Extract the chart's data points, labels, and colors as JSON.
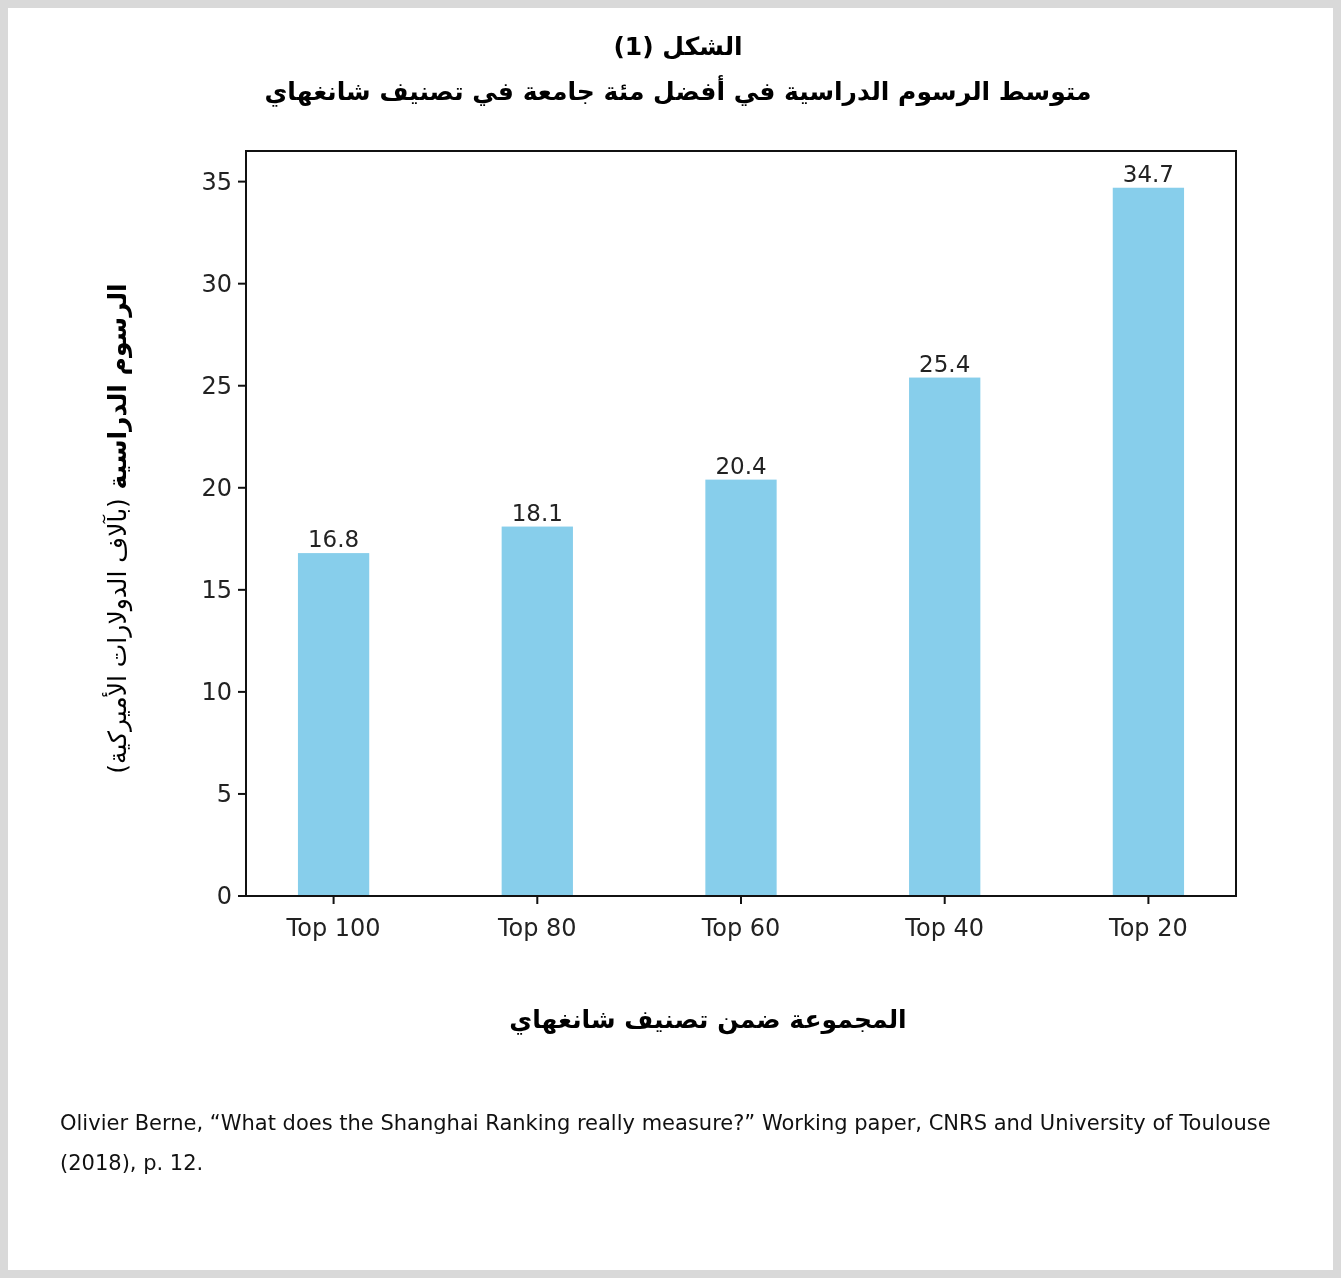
{
  "chart_data": {
    "type": "bar",
    "title": "الشكل (1)",
    "subtitle": "متوسط الرسوم الدراسية في أفضل مئة جامعة في تصنيف شانغهاي",
    "xlabel": "المجموعة ضمن تصنيف شانغهاي",
    "ylabel": "الرسوم الدراسية (بآلاف الدولارات الأميركية)",
    "categories": [
      "Top 100",
      "Top 80",
      "Top 60",
      "Top 40",
      "Top 20"
    ],
    "values": [
      16.8,
      18.1,
      20.4,
      25.4,
      34.7
    ],
    "color": "#87ceeb",
    "ylim": [
      0,
      36.5
    ],
    "yticks": [
      0,
      5,
      10,
      15,
      20,
      25,
      30,
      35
    ],
    "data_labels": true,
    "grid": false,
    "annotations": [
      "Olivier Berne, “What does the Shanghai Ranking really measure?” Working paper, CNRS and University of Toulouse (2018), p. 12."
    ]
  }
}
